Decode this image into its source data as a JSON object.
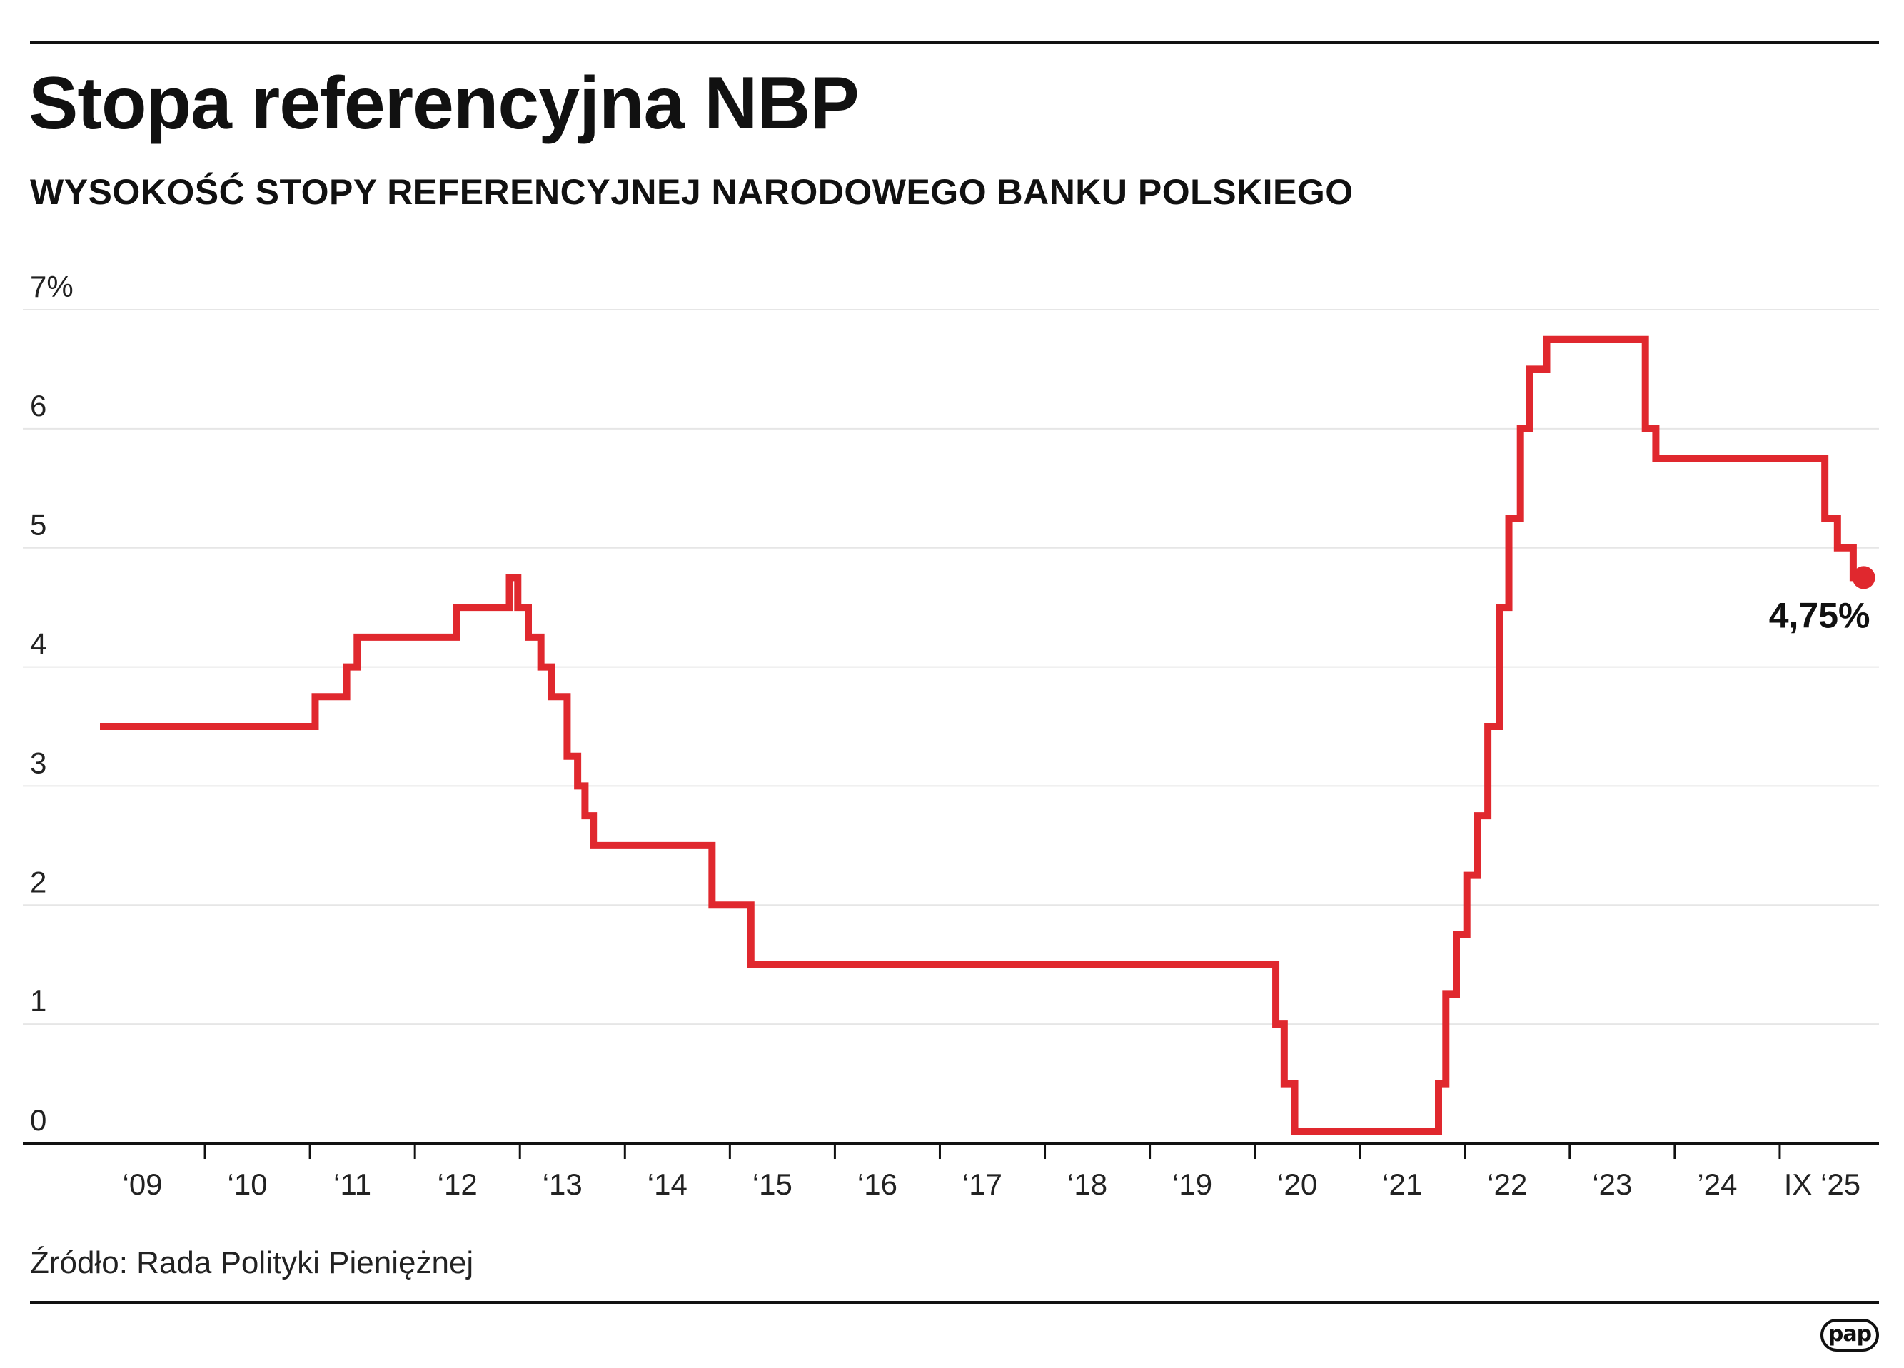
{
  "title": "Stopa referencyjna NBP",
  "subtitle": "WYSOKOŚĆ STOPY REFERENCYJNEJ NARODOWEGO BANKU POLSKIEGO",
  "source": "Źródło: Rada Polityki Pieniężnej",
  "logo": "pap",
  "colors": {
    "line": "#e0282e",
    "grid": "#e6e6e6",
    "axis": "#111111"
  },
  "chart_data": {
    "type": "line",
    "step": true,
    "grid": true,
    "ylim": [
      0,
      7
    ],
    "y_ticks": [
      "0",
      "1",
      "2",
      "3",
      "4",
      "5",
      "6",
      "7%"
    ],
    "y_tick_values": [
      0,
      1,
      2,
      3,
      4,
      5,
      6,
      7
    ],
    "xlim": [
      2009.0,
      2026.0
    ],
    "x_ticks": [
      "‘09",
      "‘10",
      "‘11",
      "‘12",
      "‘13",
      "‘14",
      "‘15",
      "‘16",
      "‘17",
      "‘18",
      "‘19",
      "‘20",
      "‘21",
      "‘22",
      "‘23",
      "’24",
      "IX ‘25"
    ],
    "series": [
      {
        "x": [
          2009.0,
          2011.05,
          2011.2,
          2011.35,
          2011.45,
          2012.4,
          2012.9,
          2012.98,
          2013.08,
          2013.2,
          2013.3,
          2013.45,
          2013.55,
          2013.62,
          2013.7,
          2014.83,
          2015.2,
          2020.2,
          2020.28,
          2020.38,
          2020.52,
          2021.75,
          2021.82,
          2021.92,
          2022.02,
          2022.12,
          2022.22,
          2022.33,
          2022.42,
          2022.53,
          2022.62,
          2022.78,
          2023.72,
          2023.82,
          2025.43,
          2025.55,
          2025.7,
          2025.8
        ],
        "y": [
          3.5,
          3.75,
          3.75,
          4.0,
          4.25,
          4.5,
          4.75,
          4.5,
          4.25,
          4.0,
          3.75,
          3.25,
          3.0,
          2.75,
          2.5,
          2.0,
          1.5,
          1.0,
          0.5,
          0.1,
          0.1,
          0.5,
          1.25,
          1.75,
          2.25,
          2.75,
          3.5,
          4.5,
          5.25,
          6.0,
          6.5,
          6.75,
          6.0,
          5.75,
          5.25,
          5.0,
          4.75,
          4.75
        ]
      }
    ],
    "annotations": [
      {
        "text": "4,75%",
        "x": 2025.8,
        "y": 4.75
      }
    ]
  }
}
